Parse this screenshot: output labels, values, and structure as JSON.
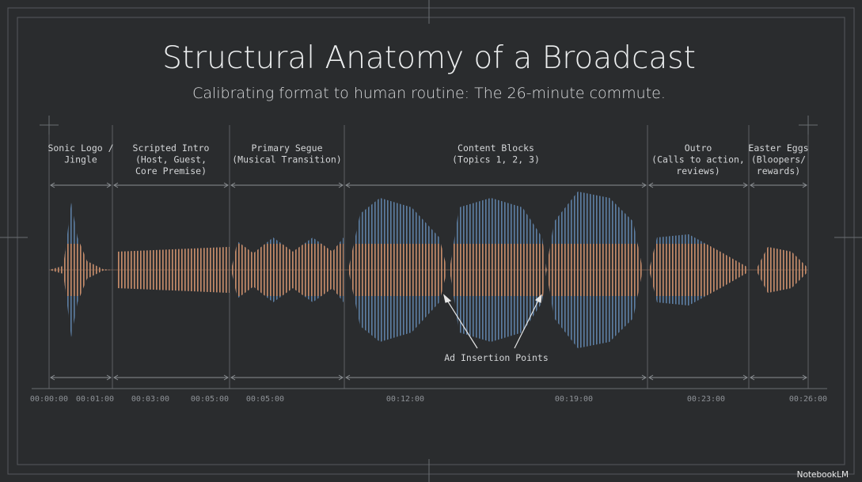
{
  "header": {
    "title": "Structural Anatomy of a Broadcast",
    "subtitle": "Calibrating format to human routine: The 26-minute commute."
  },
  "segments": [
    {
      "label": [
        "Sonic Logo /",
        "Jingle"
      ]
    },
    {
      "label": [
        "Scripted Intro",
        "(Host, Guest,",
        "Core Premise)"
      ]
    },
    {
      "label": [
        "Primary Segue",
        "(Musical Transition)"
      ]
    },
    {
      "label": [
        "Content Blocks",
        "(Topics 1, 2, 3)"
      ]
    },
    {
      "label": [
        "Outro",
        "(Calls to action,",
        "reviews)"
      ]
    },
    {
      "label": [
        "Easter Eggs",
        "(Bloopers/",
        "rewards)"
      ]
    }
  ],
  "time_labels": [
    "00:00:00",
    "00:01:00",
    "00:03:00",
    "00:05:00",
    "00:05:00",
    "00:12:00",
    "00:19:00",
    "00:23:00",
    "00:26:00"
  ],
  "annotation": "Ad Insertion Points",
  "watermark": "NotebookLM"
}
